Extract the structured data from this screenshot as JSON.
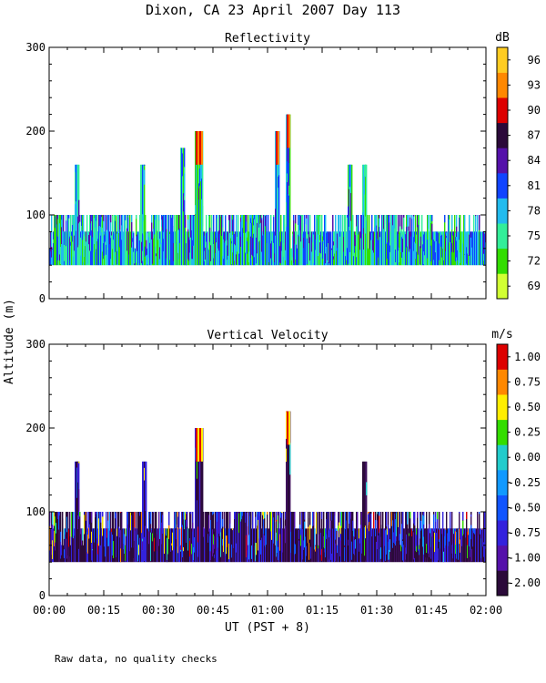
{
  "title": "Dixon, CA 23 April 2007  Day 113",
  "ylabel_shared": "Altitude (m)",
  "xlabel": "UT  (PST + 8)",
  "footer_note": "Raw data, no quality checks",
  "x_ticks": [
    "00:00",
    "00:15",
    "00:30",
    "00:45",
    "01:00",
    "01:15",
    "01:30",
    "01:45",
    "02:00"
  ],
  "y_ticks": [
    "0",
    "100",
    "200",
    "300"
  ],
  "chart_data": [
    {
      "type": "heatmap",
      "title": "Reflectivity",
      "colorbar_unit": "dB",
      "xlim_minutes": [
        0,
        120
      ],
      "ylim_m": [
        0,
        300
      ],
      "colorbar": {
        "tick_labels": [
          "69",
          "72",
          "75",
          "78",
          "81",
          "84",
          "87",
          "90",
          "93",
          "96"
        ],
        "colors": [
          "#d2ff33",
          "#33dd00",
          "#33ee99",
          "#22bbee",
          "#1144ff",
          "#5511aa",
          "#2b0a3a",
          "#dd0000",
          "#ff8800",
          "#ffcc22"
        ]
      },
      "echo_layer": {
        "base_m": 40,
        "typical_top_m": 100,
        "max_top_m": 220
      },
      "base_colors": [
        "#33ee99",
        "#22bbee",
        "#1144ff",
        "#33dd00"
      ],
      "features": [
        {
          "t_min": 7.5,
          "top_m": 160
        },
        {
          "t_min": 25.5,
          "top_m": 160
        },
        {
          "t_min": 36.5,
          "top_m": 180
        },
        {
          "t_min": 40.5,
          "top_m": 200
        },
        {
          "t_min": 41.5,
          "top_m": 200
        },
        {
          "t_min": 62.5,
          "top_m": 200
        },
        {
          "t_min": 65.5,
          "top_m": 220
        },
        {
          "t_min": 82.5,
          "top_m": 160
        },
        {
          "t_min": 86.5,
          "top_m": 160
        }
      ]
    },
    {
      "type": "heatmap",
      "title": "Vertical Velocity",
      "colorbar_unit": "m/s",
      "xlim_minutes": [
        0,
        120
      ],
      "ylim_m": [
        0,
        300
      ],
      "colorbar": {
        "tick_labels": [
          "-2.00",
          "-1.00",
          "-0.75",
          "-0.50",
          "-0.25",
          "0.00",
          "0.25",
          "0.50",
          "0.75",
          "1.00"
        ],
        "colors": [
          "#2b0a3a",
          "#5511aa",
          "#3322dd",
          "#1155ff",
          "#1199ff",
          "#22cccc",
          "#33dd00",
          "#ffee00",
          "#ff8800",
          "#dd0000"
        ]
      },
      "echo_layer": {
        "base_m": 40,
        "typical_top_m": 100,
        "max_top_m": 220
      },
      "base_colors": [
        "#2b0a3a",
        "#3d0f5a",
        "#3322dd",
        "#2b0a3a"
      ],
      "features": [
        {
          "t_min": 2,
          "top_m": 100
        },
        {
          "t_min": 7.5,
          "top_m": 160
        },
        {
          "t_min": 26,
          "top_m": 160
        },
        {
          "t_min": 40.5,
          "top_m": 200
        },
        {
          "t_min": 41.5,
          "top_m": 200
        },
        {
          "t_min": 65.5,
          "top_m": 220
        },
        {
          "t_min": 86.5,
          "top_m": 160
        }
      ]
    }
  ]
}
